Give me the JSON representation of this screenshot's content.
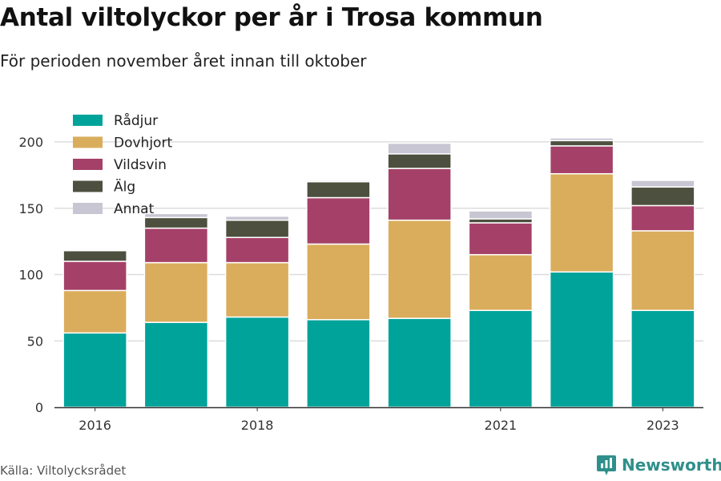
{
  "title": "Antal viltolyckor per år i Trosa kommun",
  "subtitle": "För perioden november året innan till oktober",
  "source": "Källa: Viltolycksrådet",
  "brand": {
    "name": "Newsworthy",
    "icon": "newsworthy-logo-icon",
    "color": "#2f8f8a"
  },
  "chart_data": {
    "type": "bar",
    "stacked": true,
    "categories": [
      "2016",
      "2017",
      "2018",
      "2019",
      "2020",
      "2021",
      "2022",
      "2023"
    ],
    "x_tick_labels": [
      "2016",
      "",
      "2018",
      "",
      "",
      "2021",
      "",
      "2023"
    ],
    "ylim": [
      0,
      215
    ],
    "y_ticks": [
      0,
      50,
      100,
      150,
      200
    ],
    "grid": true,
    "legend_position": "top-left",
    "series": [
      {
        "name": "Rådjur",
        "color": "#00a39a",
        "values": [
          56,
          64,
          68,
          66,
          67,
          73,
          102,
          73
        ]
      },
      {
        "name": "Dovhjort",
        "color": "#d9ad5c",
        "values": [
          32,
          45,
          41,
          57,
          74,
          42,
          74,
          60
        ]
      },
      {
        "name": "Vildsvin",
        "color": "#a54168",
        "values": [
          22,
          26,
          19,
          35,
          39,
          24,
          21,
          19
        ]
      },
      {
        "name": "Älg",
        "color": "#4d4f3f",
        "values": [
          8,
          8,
          13,
          12,
          11,
          3,
          4,
          14
        ]
      },
      {
        "name": "Annat",
        "color": "#c7c6d2",
        "values": [
          0,
          3,
          3,
          1,
          8,
          6,
          2,
          5
        ]
      }
    ]
  }
}
